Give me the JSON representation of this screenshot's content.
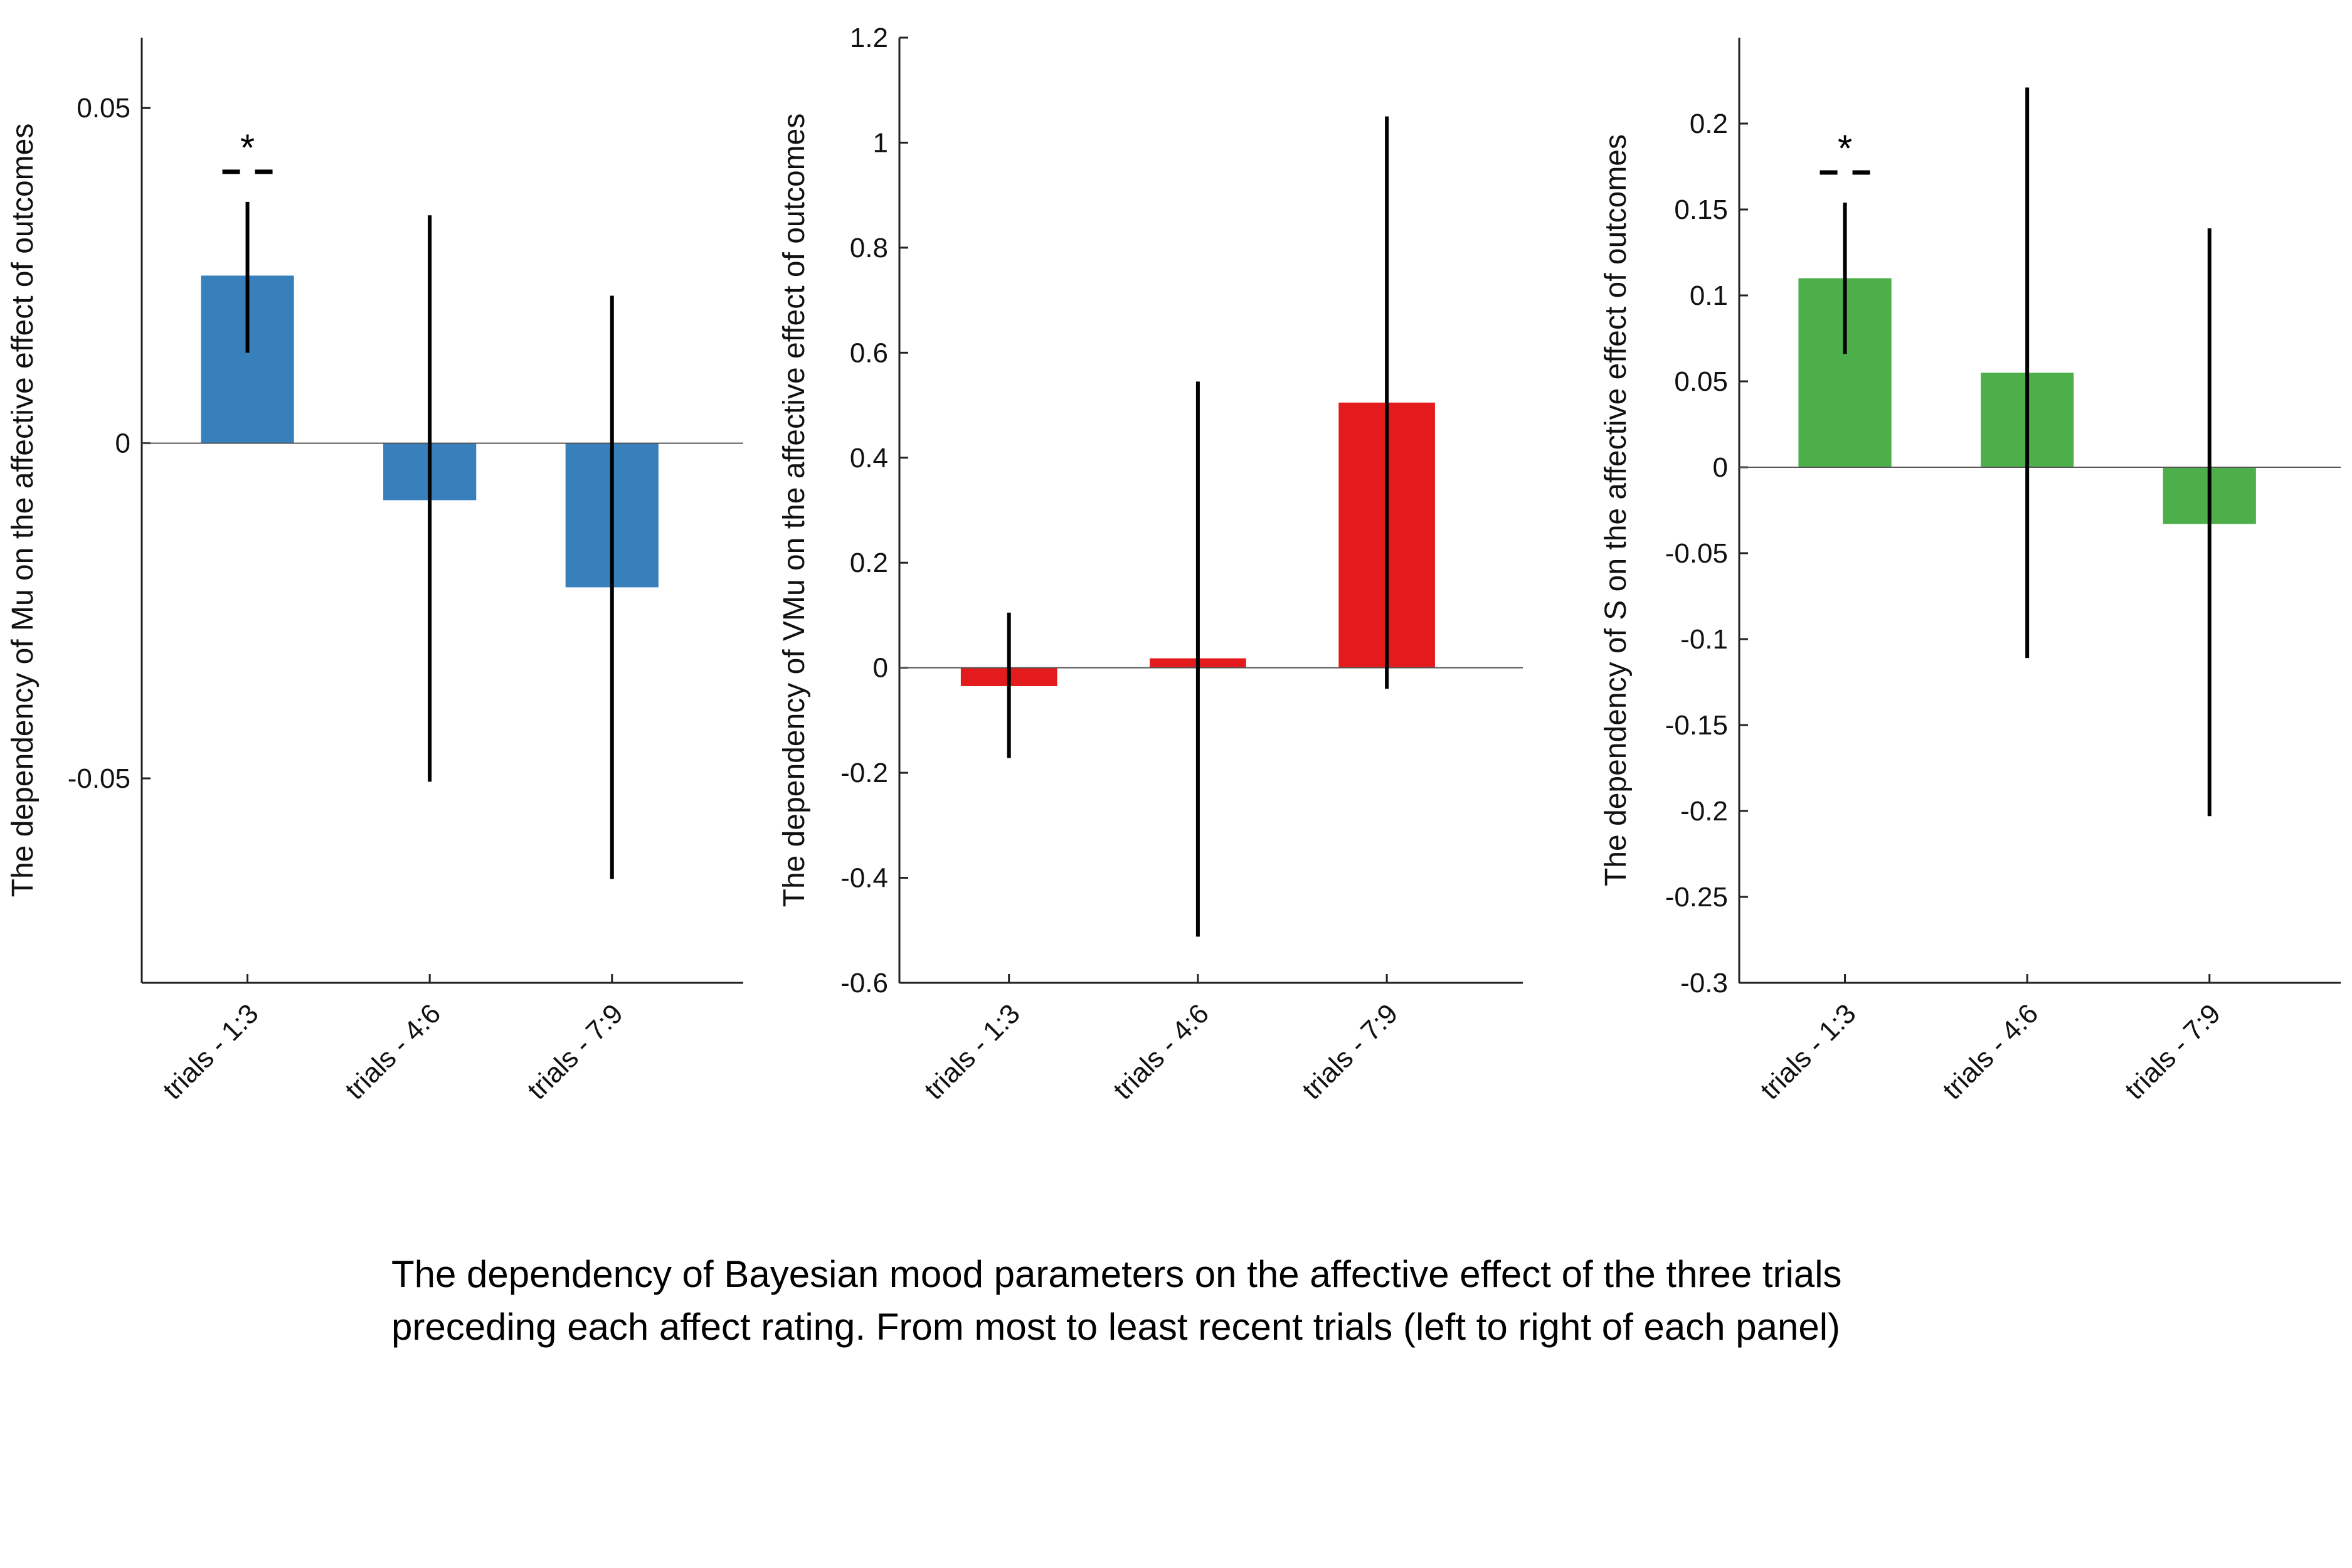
{
  "chart_data": [
    {
      "type": "bar",
      "categories": [
        "trials - 1:3",
        "trials - 4:6",
        "trials - 7:9"
      ],
      "values": [
        0.025,
        -0.0085,
        -0.0215
      ],
      "error_low": [
        0.0135,
        -0.0505,
        -0.065
      ],
      "error_high": [
        0.036,
        0.034,
        0.022
      ],
      "significance": [
        "*",
        "",
        ""
      ],
      "ylabel": "The dependency of Mu on the affective effect of outcomes",
      "ylim": [
        -0.0805,
        0.0605
      ],
      "yticks": [
        -0.05,
        0,
        0.05
      ],
      "ytick_labels": [
        "-0.05",
        "0",
        "0.05"
      ],
      "color": "#3780BB",
      "grid": false
    },
    {
      "type": "bar",
      "categories": [
        "trials - 1:3",
        "trials - 4:6",
        "trials - 7:9"
      ],
      "values": [
        -0.035,
        0.018,
        0.505
      ],
      "error_low": [
        -0.172,
        -0.512,
        -0.04
      ],
      "error_high": [
        0.105,
        0.545,
        1.05
      ],
      "significance": [
        "",
        "",
        ""
      ],
      "ylabel": "The dependency of VMu on the affective effect of outcomes",
      "ylim": [
        -0.6,
        1.2
      ],
      "yticks": [
        -0.6,
        -0.4,
        -0.2,
        0,
        0.2,
        0.4,
        0.6,
        0.8,
        1,
        1.2
      ],
      "ytick_labels": [
        "-0.6",
        "-0.4",
        "-0.2",
        "0",
        "0.2",
        "0.4",
        "0.6",
        "0.8",
        "1",
        "1.2"
      ],
      "color": "#E41B1C",
      "grid": false
    },
    {
      "type": "bar",
      "categories": [
        "trials - 1:3",
        "trials - 4:6",
        "trials - 7:9"
      ],
      "values": [
        0.11,
        0.055,
        -0.033
      ],
      "error_low": [
        0.066,
        -0.111,
        -0.203
      ],
      "error_high": [
        0.154,
        0.221,
        0.139
      ],
      "significance": [
        "*",
        "",
        ""
      ],
      "ylabel": "The dependency of S on the affective effect of outcomes",
      "ylim": [
        -0.3,
        0.25
      ],
      "yticks": [
        -0.3,
        -0.25,
        -0.2,
        -0.15,
        -0.1,
        -0.05,
        0,
        0.05,
        0.1,
        0.15,
        0.2
      ],
      "ytick_labels": [
        "-0.3",
        "-0.25",
        "-0.2",
        "-0.15",
        "-0.1",
        "-0.05",
        "0",
        "0.05",
        "0.1",
        "0.15",
        "0.2"
      ],
      "color": "#4DAF4A",
      "grid": false
    }
  ],
  "caption": {
    "line1": "The dependency of Bayesian mood parameters on the affective effect of the three trials",
    "line2": "preceding each affect rating. From most to least recent trials (left to right of each panel)"
  }
}
